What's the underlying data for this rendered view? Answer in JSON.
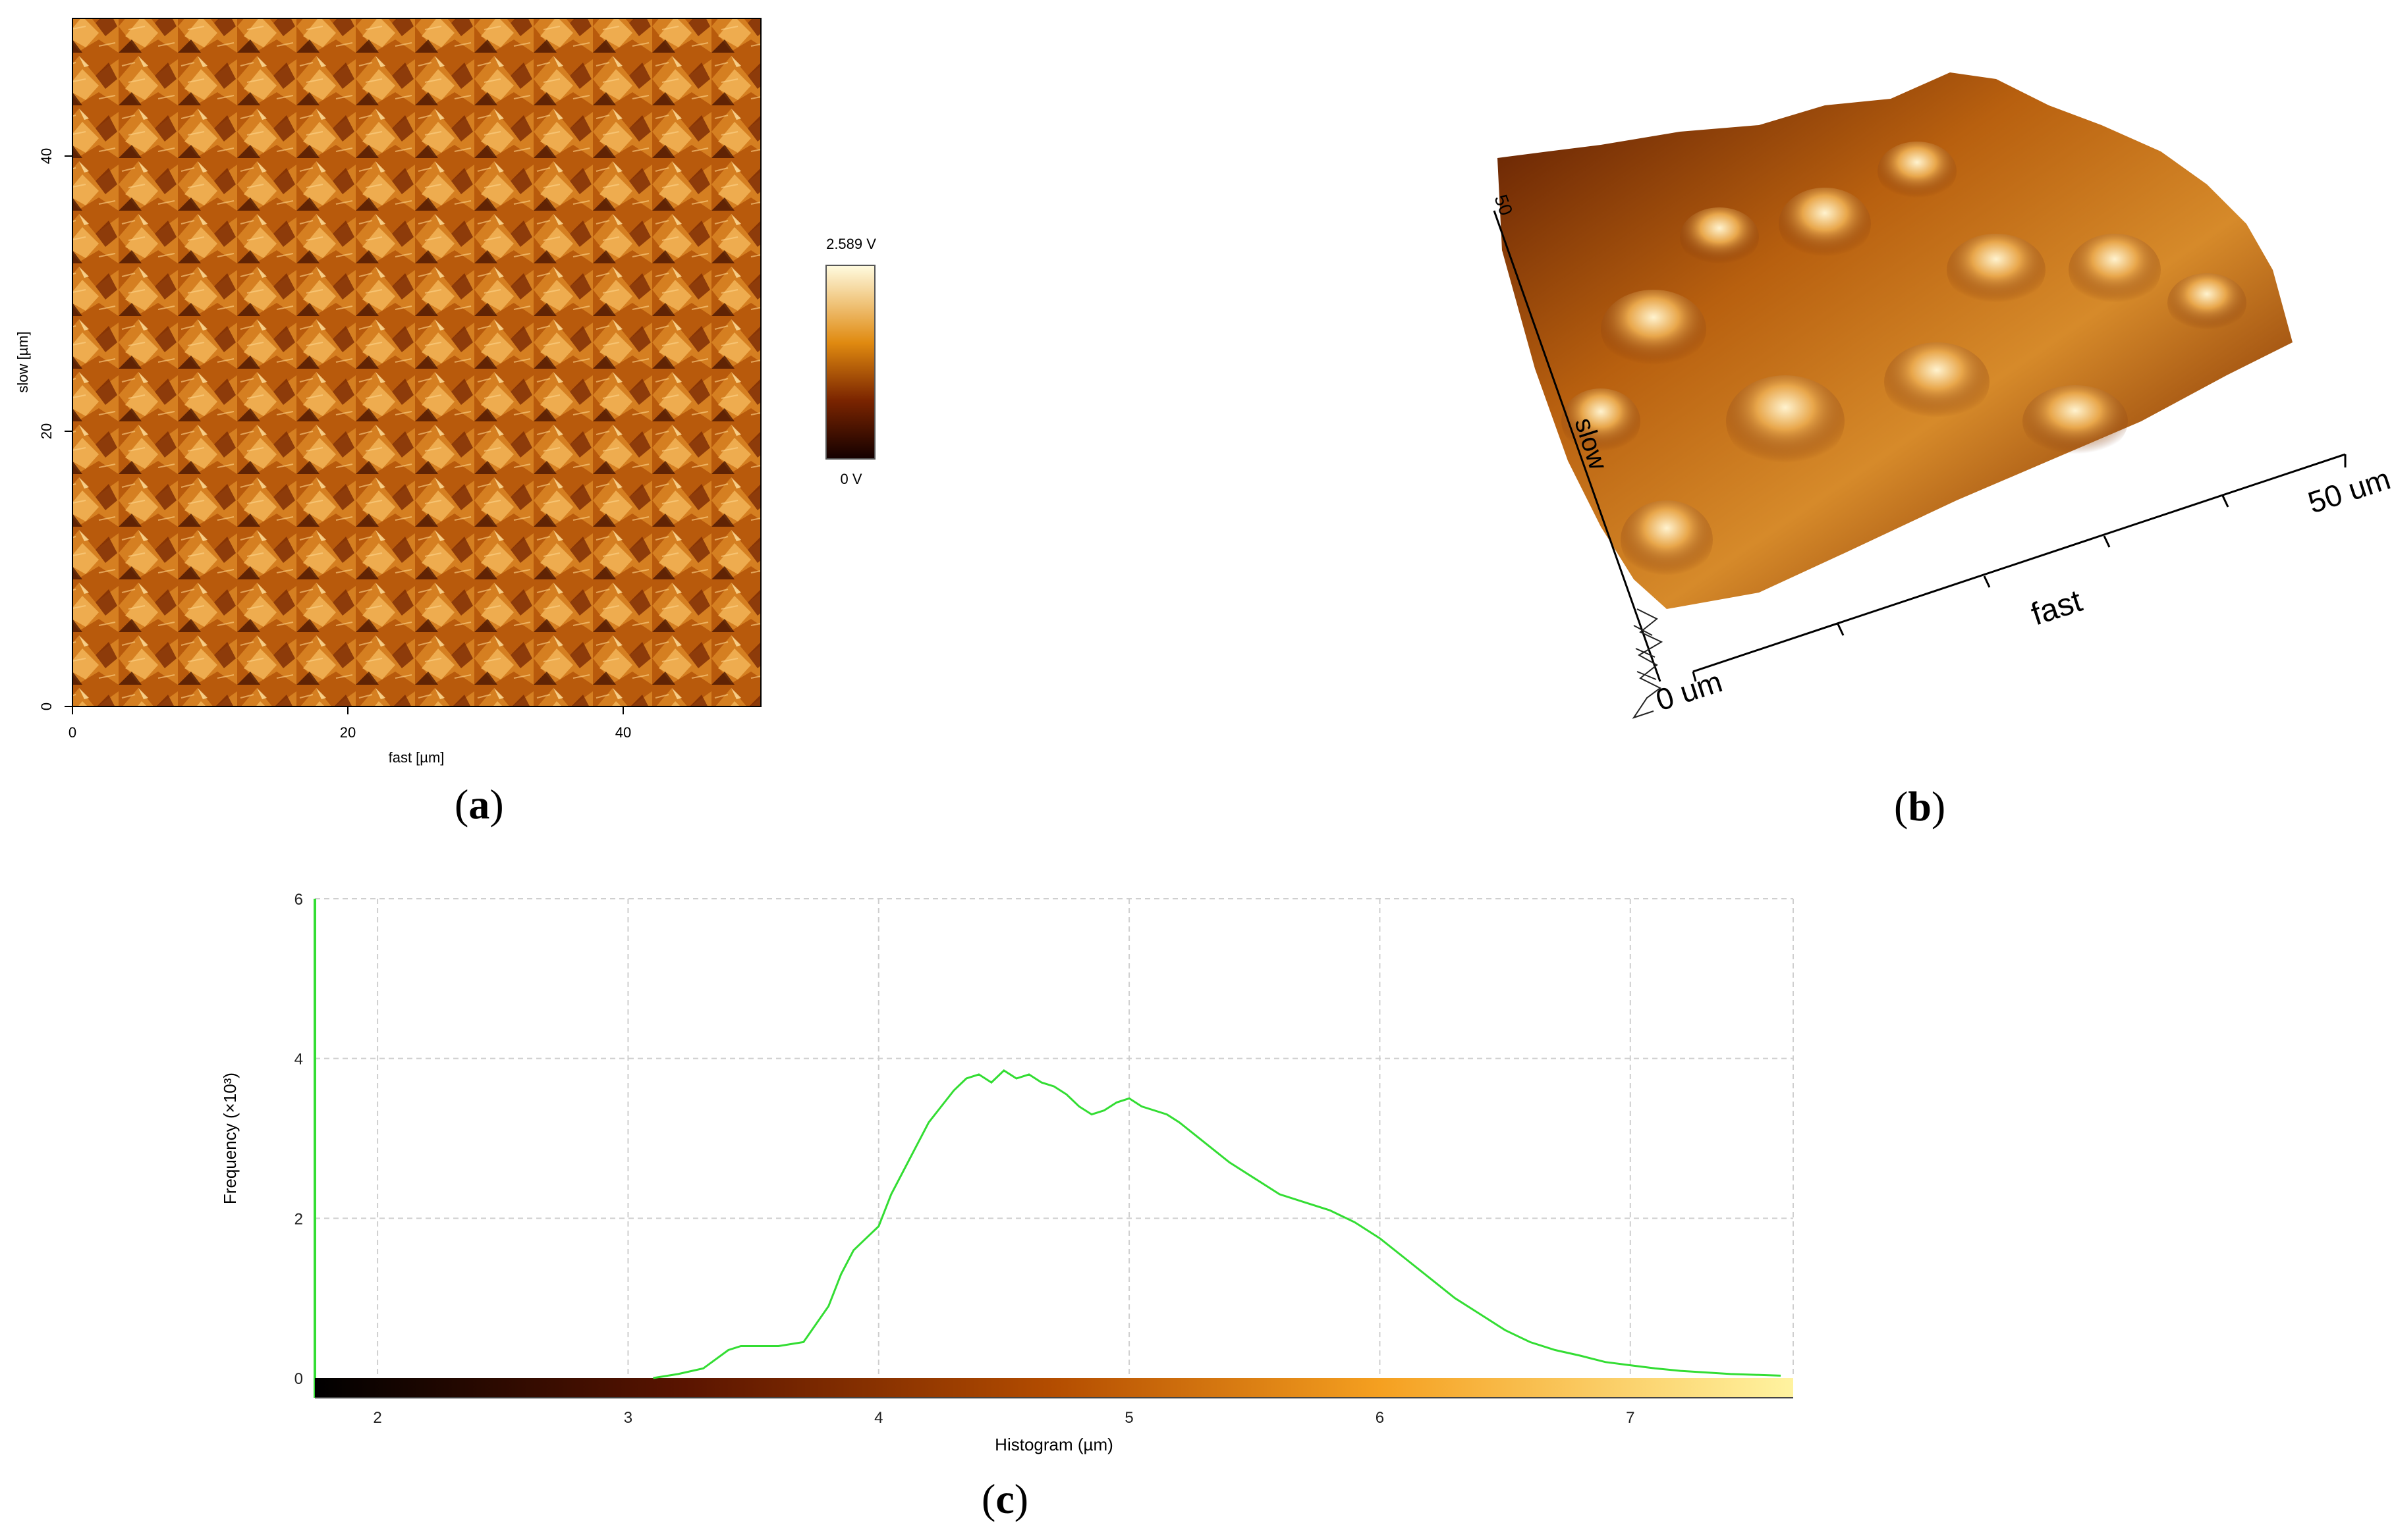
{
  "panels": {
    "a": {
      "caption_open": "(",
      "caption_letter": "a",
      "caption_close": ")",
      "x_axis_label": "fast [µm]",
      "y_axis_label": "slow [µm]",
      "x_ticks": [
        "0",
        "20",
        "40"
      ],
      "y_ticks": [
        "0",
        "20",
        "40"
      ],
      "colorbar_max": "2.589 V",
      "colorbar_min": "0 V"
    },
    "b": {
      "caption_open": "(",
      "caption_letter": "b",
      "caption_close": ")",
      "slow_label": "slow",
      "fast_label": "fast",
      "fast_end_label": "50 um",
      "origin_label": "0 um",
      "slow_end_label": "50"
    },
    "c": {
      "caption_open": "(",
      "caption_letter": "c",
      "caption_close": ")"
    }
  },
  "chart_data": {
    "type": "line",
    "title": "",
    "xlabel": "Histogram (µm)",
    "ylabel": "Frequency (×10³)",
    "xlim": [
      1.75,
      7.65
    ],
    "ylim": [
      0,
      6
    ],
    "x_ticks": [
      2,
      3,
      4,
      5,
      6,
      7
    ],
    "y_ticks": [
      0,
      2,
      4,
      6
    ],
    "grid": true,
    "series": [
      {
        "name": "Histogram",
        "color": "#33dd33",
        "x": [
          3.1,
          3.2,
          3.3,
          3.4,
          3.45,
          3.5,
          3.6,
          3.7,
          3.8,
          3.85,
          3.9,
          3.95,
          4.0,
          4.05,
          4.1,
          4.15,
          4.2,
          4.25,
          4.3,
          4.35,
          4.4,
          4.45,
          4.5,
          4.55,
          4.6,
          4.65,
          4.7,
          4.75,
          4.8,
          4.85,
          4.9,
          4.95,
          5.0,
          5.05,
          5.1,
          5.15,
          5.2,
          5.3,
          5.4,
          5.5,
          5.6,
          5.7,
          5.8,
          5.9,
          6.0,
          6.1,
          6.2,
          6.3,
          6.4,
          6.5,
          6.6,
          6.7,
          6.8,
          6.9,
          7.0,
          7.1,
          7.2,
          7.3,
          7.4,
          7.5,
          7.6
        ],
        "y": [
          0.0,
          0.05,
          0.12,
          0.35,
          0.4,
          0.4,
          0.4,
          0.45,
          0.9,
          1.3,
          1.6,
          1.75,
          1.9,
          2.3,
          2.6,
          2.9,
          3.2,
          3.4,
          3.6,
          3.75,
          3.8,
          3.7,
          3.85,
          3.75,
          3.8,
          3.7,
          3.65,
          3.55,
          3.4,
          3.3,
          3.35,
          3.45,
          3.5,
          3.4,
          3.35,
          3.3,
          3.2,
          2.95,
          2.7,
          2.5,
          2.3,
          2.2,
          2.1,
          1.95,
          1.75,
          1.5,
          1.25,
          1.0,
          0.8,
          0.6,
          0.45,
          0.35,
          0.28,
          0.2,
          0.16,
          0.12,
          0.09,
          0.07,
          0.05,
          0.04,
          0.03
        ]
      }
    ],
    "colorbar": {
      "from": "#000000",
      "mid1": "#5a1400",
      "mid2": "#b44d00",
      "mid3": "#f5a020",
      "to": "#fff3a0"
    }
  }
}
